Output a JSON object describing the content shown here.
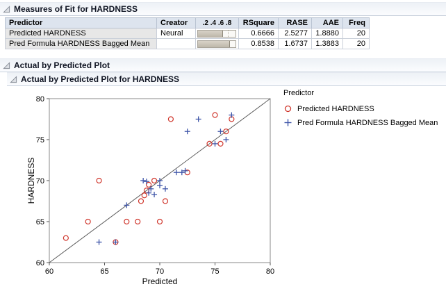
{
  "panels": {
    "measures": {
      "title": "Measures of Fit for HARDNESS",
      "table": {
        "headers": [
          "Predictor",
          "Creator",
          ".2 .4 .6 .8",
          "RSquare",
          "RASE",
          "AAE",
          "Freq"
        ],
        "rows": [
          {
            "predictor": "Predicted HARDNESS",
            "creator": "Neural",
            "rsquare_bar": 0.6666,
            "rsquare": "0.6666",
            "rase": "2.5277",
            "aae": "1.8880",
            "freq": "20"
          },
          {
            "predictor": "Pred Formula HARDNESS Bagged Mean",
            "creator": "",
            "rsquare_bar": 0.8538,
            "rsquare": "0.8538",
            "rase": "1.6737",
            "aae": "1.3883",
            "freq": "20"
          }
        ]
      }
    },
    "actual_by_predicted": {
      "title": "Actual by Predicted Plot"
    },
    "plot_panel": {
      "title": "Actual by Predicted Plot for HARDNESS"
    }
  },
  "chart_data": {
    "type": "scatter",
    "title": "Actual by Predicted Plot for HARDNESS",
    "xlabel": "Predicted",
    "ylabel": "HARDNESS",
    "xlim": [
      60,
      80
    ],
    "ylim": [
      60,
      80
    ],
    "xticks": [
      60,
      65,
      70,
      75,
      80
    ],
    "yticks": [
      60,
      65,
      70,
      75,
      80
    ],
    "grid": false,
    "reference_line": {
      "from": [
        60,
        60
      ],
      "to": [
        80,
        80
      ],
      "color": "#5a5a5a"
    },
    "frame_color": "#8a8a8a",
    "legend": {
      "title": "Predictor",
      "position": "right",
      "entries": [
        {
          "label": "Predicted HARDNESS",
          "marker": "circle",
          "color": "#D0372D"
        },
        {
          "label": "Pred Formula HARDNESS Bagged Mean",
          "marker": "plus",
          "color": "#3E55A8"
        }
      ]
    },
    "series": [
      {
        "name": "Predicted HARDNESS",
        "marker": "circle",
        "color": "#D0372D",
        "points": [
          [
            61.5,
            63
          ],
          [
            63.5,
            65
          ],
          [
            64.5,
            70
          ],
          [
            66,
            62.5
          ],
          [
            67,
            65
          ],
          [
            68,
            65
          ],
          [
            68.3,
            67.5
          ],
          [
            68.6,
            68.2
          ],
          [
            68.8,
            68.8
          ],
          [
            69,
            69.5
          ],
          [
            69.5,
            70
          ],
          [
            70,
            65
          ],
          [
            70.5,
            67.5
          ],
          [
            71,
            77.5
          ],
          [
            72.5,
            71
          ],
          [
            74.5,
            74.5
          ],
          [
            75,
            78
          ],
          [
            75.5,
            74.5
          ],
          [
            76,
            76
          ],
          [
            76.5,
            77.5
          ]
        ]
      },
      {
        "name": "Pred Formula HARDNESS Bagged Mean",
        "marker": "plus",
        "color": "#3E55A8",
        "points": [
          [
            64.5,
            62.5
          ],
          [
            66,
            62.5
          ],
          [
            67,
            67
          ],
          [
            68.5,
            70
          ],
          [
            68.8,
            69.9
          ],
          [
            69,
            68.5
          ],
          [
            69.2,
            69
          ],
          [
            69.5,
            68.3
          ],
          [
            70,
            70
          ],
          [
            70,
            69.4
          ],
          [
            70.5,
            69
          ],
          [
            71.5,
            71
          ],
          [
            72,
            71
          ],
          [
            72.3,
            71.2
          ],
          [
            72.5,
            76
          ],
          [
            73.5,
            77.5
          ],
          [
            75,
            74.5
          ],
          [
            75.5,
            76
          ],
          [
            76,
            75
          ],
          [
            76.5,
            78
          ]
        ]
      }
    ]
  }
}
